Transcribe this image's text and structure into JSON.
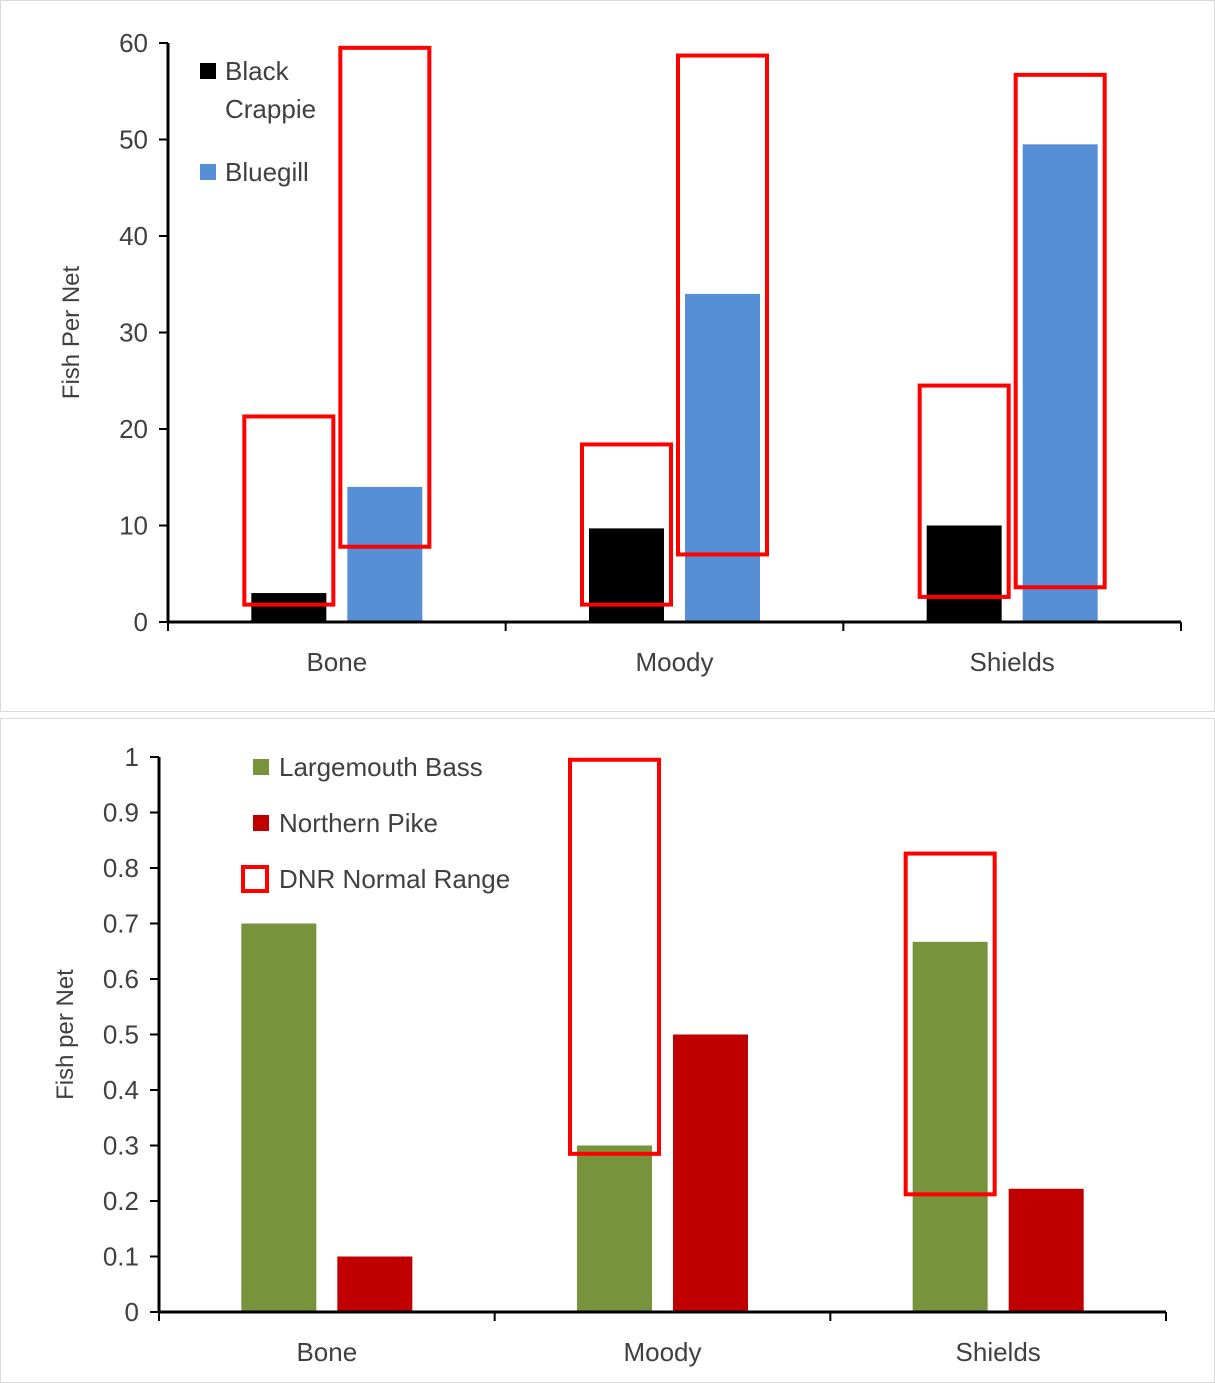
{
  "chart_data": [
    {
      "type": "bar",
      "categories": [
        "Bone",
        "Moody",
        "Shields"
      ],
      "ylabel": "Fish Per Net",
      "ylim": [
        0,
        60
      ],
      "yticks": [
        0,
        10,
        20,
        30,
        40,
        50,
        60
      ],
      "grid": false,
      "legend_position": "top-left",
      "series": [
        {
          "name": "Black Crappie",
          "legend_lines": [
            "Black",
            "Crappie"
          ],
          "color": "#000000",
          "values": [
            3,
            9.7,
            10
          ]
        },
        {
          "name": "Bluegill",
          "legend_lines": [
            "Bluegill"
          ],
          "color": "#568fd6",
          "values": [
            14,
            34,
            49.5
          ]
        }
      ],
      "ranges": {
        "color": "#ff0000",
        "per_series": [
          [
            [
              1.8,
              21.3
            ],
            [
              1.8,
              18.4
            ],
            [
              2.6,
              24.5
            ]
          ],
          [
            [
              7.8,
              59.5
            ],
            [
              7,
              58.7
            ],
            [
              3.6,
              56.7
            ]
          ]
        ]
      }
    },
    {
      "type": "bar",
      "categories": [
        "Bone",
        "Moody",
        "Shields"
      ],
      "ylabel": "Fish per Net",
      "ylim": [
        0,
        1
      ],
      "yticks": [
        "0",
        "0.1",
        "0.2",
        "0.3",
        "0.4",
        "0.5",
        "0.6",
        "0.7",
        "0.8",
        "0.9",
        "1"
      ],
      "grid": false,
      "legend_position": "top-left",
      "series": [
        {
          "name": "Largemouth Bass",
          "legend_lines": [
            "Largemouth Bass"
          ],
          "color": "#77933c",
          "values": [
            0.7,
            0.3,
            0.667
          ]
        },
        {
          "name": "Northern Pike",
          "legend_lines": [
            "Northern Pike"
          ],
          "color": "#c00000",
          "values": [
            0.1,
            0.5,
            0.222
          ]
        }
      ],
      "ranges": {
        "color": "#ff0000",
        "legend_label": "DNR Normal Range",
        "per_series": [
          [
            null,
            [
              0.285,
              0.995
            ],
            [
              0.212,
              0.826
            ]
          ],
          [
            null,
            null,
            null
          ]
        ]
      }
    }
  ]
}
